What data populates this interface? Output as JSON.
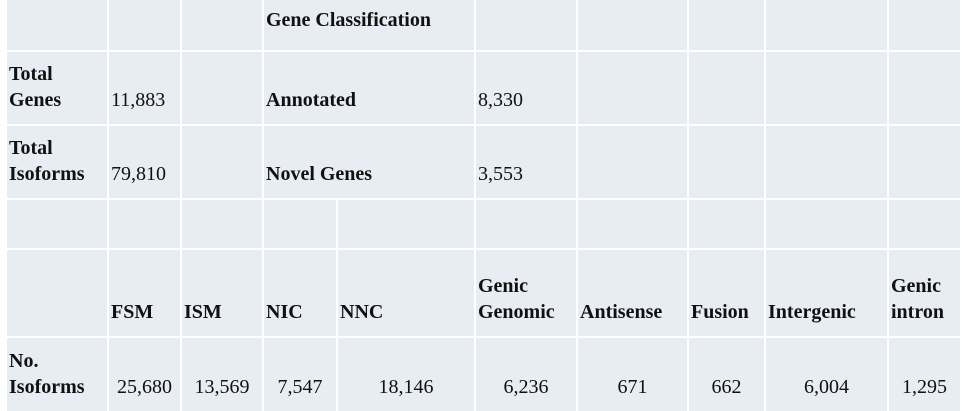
{
  "summary": {
    "gene_classification_label": "Gene Classification",
    "rows": [
      {
        "label_line1": "Total",
        "label_line2": "Genes",
        "value": "11,883",
        "class_label": "Annotated",
        "class_value": "8,330"
      },
      {
        "label_line1": "Total",
        "label_line2": "Isoforms",
        "value": "79,810",
        "class_label": "Novel Genes",
        "class_value": "3,553"
      }
    ]
  },
  "isoform_classes": {
    "headers": [
      {
        "line1": "",
        "line2": "FSM"
      },
      {
        "line1": "",
        "line2": "ISM"
      },
      {
        "line1": "",
        "line2": "NIC"
      },
      {
        "line1": "",
        "line2": "NNC"
      },
      {
        "line1": "Genic",
        "line2": "Genomic"
      },
      {
        "line1": "",
        "line2": "Antisense"
      },
      {
        "line1": "",
        "line2": "Fusion"
      },
      {
        "line1": "",
        "line2": "Intergenic"
      },
      {
        "line1": "Genic",
        "line2": "intron"
      }
    ],
    "row_label_line1": "No.",
    "row_label_line2": "Isoforms",
    "values": [
      "25,680",
      "13,569",
      "7,547",
      "18,146",
      "6,236",
      "671",
      "662",
      "6,004",
      "1,295"
    ]
  },
  "colors": {
    "cell_background": "#e8ecf3",
    "grid_lines": "#ffffff"
  }
}
